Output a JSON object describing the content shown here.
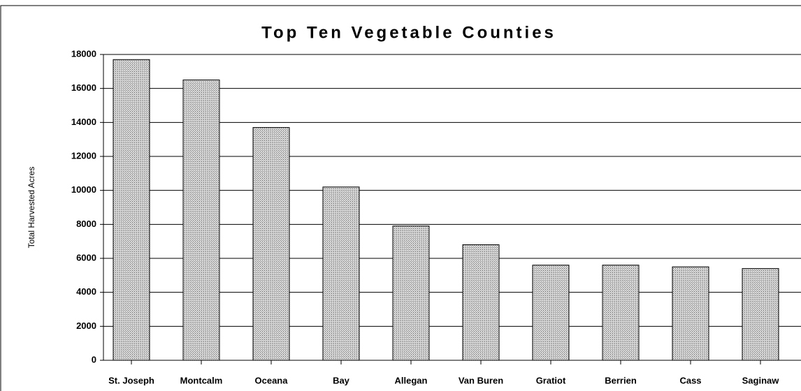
{
  "chart_data": {
    "type": "bar",
    "title": "Top Ten Vegetable Counties",
    "y_label": "Total Harvested Acres",
    "categories": [
      "St. Joseph",
      "Montcalm",
      "Oceana",
      "Bay",
      "Allegan",
      "Van Buren",
      "Gratiot",
      "Berrien",
      "Cass",
      "Saginaw"
    ],
    "values": [
      17700,
      16500,
      13700,
      10200,
      7900,
      6800,
      5600,
      5600,
      5500,
      5400
    ],
    "color": "#bdbdbd",
    "ylim": [
      0,
      18000
    ],
    "yticks": [
      0,
      2000,
      4000,
      6000,
      8000,
      10000,
      12000,
      14000,
      16000,
      18000
    ],
    "grid": true
  }
}
